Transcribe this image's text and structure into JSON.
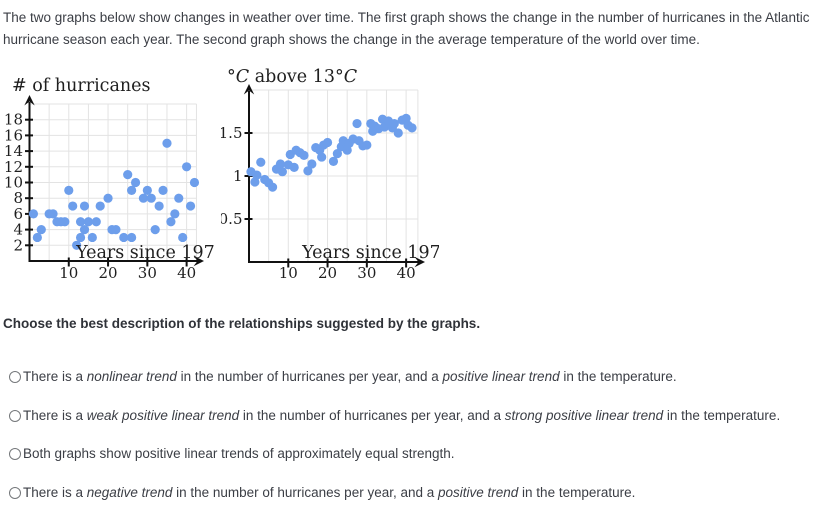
{
  "intro": "The two graphs below show changes in weather over time. The first graph shows the change in the number of hurricanes in the Atlantic hurricane season each year. The second graph shows the change in the average temperature of the world over time.",
  "question": "Choose the best description of the relationships suggested by the graphs.",
  "options": [
    {
      "selected": false,
      "segments": [
        {
          "text": "There is a "
        },
        {
          "text": "nonlinear trend",
          "italic": true
        },
        {
          "text": " in the number of hurricanes per year, and a "
        },
        {
          "text": "positive linear trend",
          "italic": true
        },
        {
          "text": " in the temperature."
        }
      ]
    },
    {
      "selected": false,
      "segments": [
        {
          "text": "There is a "
        },
        {
          "text": "weak positive linear trend",
          "italic": true
        },
        {
          "text": " in the number of hurricanes per year, and a "
        },
        {
          "text": "strong positive linear trend",
          "italic": true
        },
        {
          "text": " in the temperature."
        }
      ]
    },
    {
      "selected": false,
      "segments": [
        {
          "text": "Both graphs show positive linear trends of approximately equal strength."
        }
      ]
    },
    {
      "selected": false,
      "segments": [
        {
          "text": "There is a "
        },
        {
          "text": "negative trend",
          "italic": true
        },
        {
          "text": " in the number of hurricanes per year, and a "
        },
        {
          "text": "positive trend",
          "italic": true
        },
        {
          "text": " in the temperature."
        }
      ]
    }
  ],
  "colors": {
    "dot": "#6d9eeb",
    "grid": "#e3e3e3",
    "axis": "#111111",
    "label_text": "#1f1f1f",
    "body_text": "#3b3e45",
    "radio_border": "#75787b"
  },
  "chart_data": [
    {
      "type": "scatter",
      "title": "# of hurricanes",
      "xlabel": "Years since 1970",
      "ylabel": "# of hurricanes",
      "xticks": [
        10,
        20,
        30,
        40
      ],
      "yticks": [
        2,
        4,
        6,
        8,
        10,
        12,
        14,
        16,
        18
      ],
      "xlim": [
        0,
        42.5
      ],
      "ylim": [
        0,
        20.5
      ],
      "grid": true,
      "legend": "none",
      "points": [
        [
          1,
          6
        ],
        [
          2,
          3
        ],
        [
          3,
          4
        ],
        [
          5,
          6
        ],
        [
          6,
          6
        ],
        [
          7,
          5
        ],
        [
          8,
          5
        ],
        [
          9,
          5
        ],
        [
          10,
          9
        ],
        [
          11,
          7
        ],
        [
          12,
          2
        ],
        [
          13,
          3
        ],
        [
          13,
          5
        ],
        [
          14,
          4
        ],
        [
          14,
          7
        ],
        [
          15,
          5
        ],
        [
          16,
          3
        ],
        [
          17,
          5
        ],
        [
          18,
          7
        ],
        [
          20,
          8
        ],
        [
          21,
          4
        ],
        [
          22,
          4
        ],
        [
          24,
          3
        ],
        [
          25,
          11
        ],
        [
          26,
          3
        ],
        [
          26,
          9
        ],
        [
          27,
          10
        ],
        [
          29,
          8
        ],
        [
          30,
          9
        ],
        [
          31,
          8
        ],
        [
          32,
          4
        ],
        [
          33,
          7
        ],
        [
          34,
          9
        ],
        [
          35,
          15
        ],
        [
          36,
          5
        ],
        [
          37,
          6
        ],
        [
          38,
          8
        ],
        [
          39,
          3
        ],
        [
          40,
          12
        ],
        [
          41,
          7
        ],
        [
          42,
          10
        ]
      ]
    },
    {
      "type": "scatter",
      "title": "°C above 13°C",
      "xlabel": "Years since 1970",
      "ylabel": "°C above 13°C",
      "xticks": [
        10,
        20,
        30,
        40
      ],
      "yticks": [
        0.5,
        1,
        1.5
      ],
      "xlim": [
        0,
        43
      ],
      "ylim": [
        0,
        2.05
      ],
      "grid": true,
      "legend": "none",
      "points": [
        [
          0.5,
          1.05
        ],
        [
          1.5,
          0.93
        ],
        [
          2,
          1.01
        ],
        [
          3,
          1.16
        ],
        [
          4,
          0.96
        ],
        [
          5,
          0.92
        ],
        [
          6,
          0.87
        ],
        [
          7,
          1.08
        ],
        [
          8,
          1.14
        ],
        [
          8.5,
          1.05
        ],
        [
          10,
          1.13
        ],
        [
          10.5,
          1.25
        ],
        [
          11.5,
          1.1
        ],
        [
          12,
          1.3
        ],
        [
          13,
          1.27
        ],
        [
          14,
          1.24
        ],
        [
          15,
          1.06
        ],
        [
          16,
          1.14
        ],
        [
          17,
          1.33
        ],
        [
          18,
          1.3
        ],
        [
          18.5,
          1.22
        ],
        [
          19,
          1.36
        ],
        [
          20,
          1.39
        ],
        [
          21.5,
          1.17
        ],
        [
          22.5,
          1.26
        ],
        [
          23.5,
          1.34
        ],
        [
          24,
          1.41
        ],
        [
          25,
          1.3
        ],
        [
          25.5,
          1.38
        ],
        [
          26.5,
          1.43
        ],
        [
          27.5,
          1.61
        ],
        [
          28,
          1.41
        ],
        [
          29,
          1.35
        ],
        [
          30,
          1.36
        ],
        [
          31,
          1.61
        ],
        [
          31.5,
          1.52
        ],
        [
          32,
          1.58
        ],
        [
          33,
          1.55
        ],
        [
          34,
          1.66
        ],
        [
          34.5,
          1.57
        ],
        [
          35.5,
          1.64
        ],
        [
          36.5,
          1.56
        ],
        [
          37,
          1.61
        ],
        [
          38,
          1.5
        ],
        [
          39,
          1.65
        ],
        [
          40,
          1.67
        ],
        [
          40.5,
          1.59
        ],
        [
          41.5,
          1.56
        ]
      ]
    }
  ]
}
